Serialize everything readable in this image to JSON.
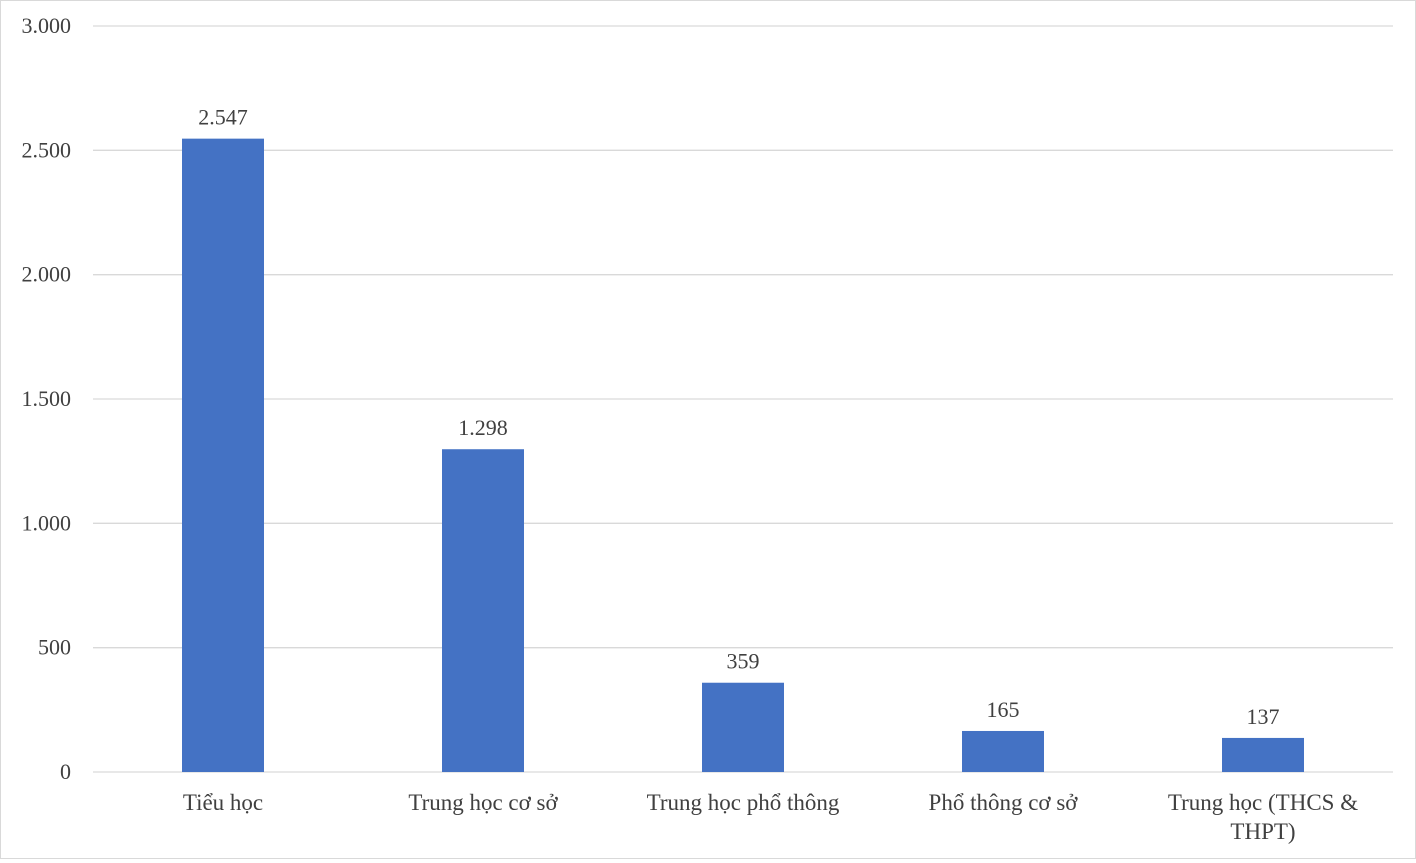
{
  "chart_data": {
    "type": "bar",
    "title": "",
    "xlabel": "",
    "ylabel": "",
    "categories": [
      [
        "Tiểu học"
      ],
      [
        "Trung học cơ sở"
      ],
      [
        "Trung học phổ thông"
      ],
      [
        "Phổ thông cơ sở"
      ],
      [
        "Trung học (THCS &",
        "THPT)"
      ]
    ],
    "values": [
      2547,
      1298,
      359,
      165,
      137
    ],
    "value_labels": [
      "2.547",
      "1.298",
      "359",
      "165",
      "137"
    ],
    "ylim": [
      0,
      3000
    ],
    "yticks": [
      0,
      500,
      1000,
      1500,
      2000,
      2500,
      3000
    ],
    "ytick_labels": [
      "0",
      "500",
      "1.000",
      "1.500",
      "2.000",
      "2.500",
      "3.000"
    ],
    "grid": true,
    "legend": "none",
    "bar_color": "#4472c4"
  }
}
